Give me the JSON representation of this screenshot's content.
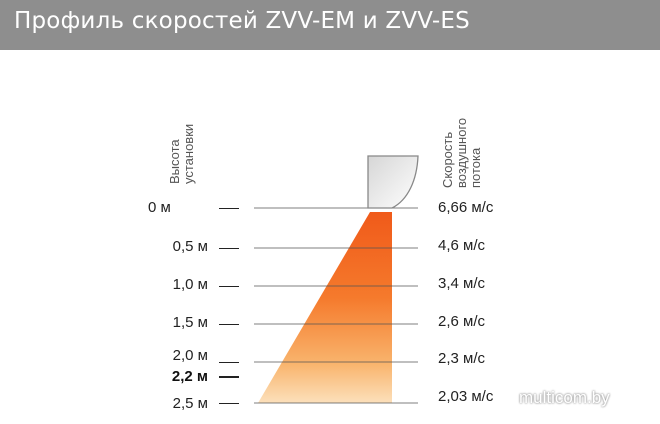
{
  "header": {
    "title": "Профиль скоростей ZVV-EM и ZVV-ES"
  },
  "axis_left": {
    "line1": "Высота",
    "line2": "установки"
  },
  "axis_right": {
    "line1": "Скорость",
    "line2": "воздушного",
    "line3": "потока"
  },
  "heights": [
    {
      "label": "0 м"
    },
    {
      "label": "0,5 м"
    },
    {
      "label": "1,0 м"
    },
    {
      "label": "1,5 м"
    },
    {
      "label": "2,0 м"
    },
    {
      "label": "2,2 м",
      "bold": true
    },
    {
      "label": "2,5 м"
    }
  ],
  "speeds": [
    {
      "label": "6,66 м/с"
    },
    {
      "label": "4,6 м/с"
    },
    {
      "label": "3,4 м/с"
    },
    {
      "label": "2,6 м/с"
    },
    {
      "label": "2,3 м/с"
    },
    {
      "label": "2,03 м/с"
    }
  ],
  "watermark": "multicom.by",
  "colors": {
    "header_bg": "#8e8e8e",
    "flow_top": "#f05a1a",
    "flow_bottom": "#fbd8a8",
    "device_fill": "#e0e0e0"
  }
}
